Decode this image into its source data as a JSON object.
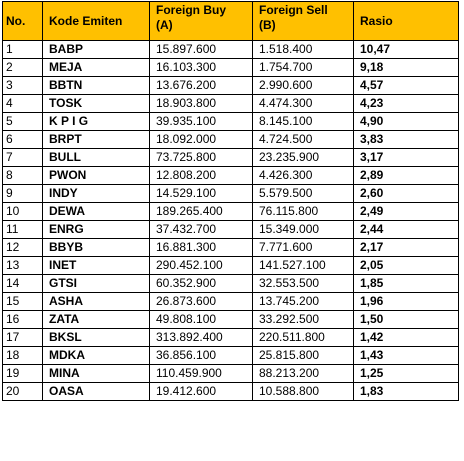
{
  "headers": {
    "no": "No.",
    "kode": "Kode Emiten",
    "buy_line1": "Foreign Buy",
    "buy_line2": "(A)",
    "sell_line1": "Foreign Sell",
    "sell_line2": "(B)",
    "rasio": "Rasio"
  },
  "header_color": "#ffc000",
  "rows": [
    {
      "no": "1",
      "kode": "BABP",
      "buy": "15.897.600",
      "sell": "1.518.400",
      "rasio": "10,47"
    },
    {
      "no": "2",
      "kode": "MEJA",
      "buy": "16.103.300",
      "sell": "1.754.700",
      "rasio": "9,18"
    },
    {
      "no": "3",
      "kode": "BBTN",
      "buy": "13.676.200",
      "sell": "2.990.600",
      "rasio": "4,57"
    },
    {
      "no": "4",
      "kode": "TOSK",
      "buy": "18.903.800",
      "sell": "4.474.300",
      "rasio": "4,23"
    },
    {
      "no": "5",
      "kode": "K P I G",
      "buy": "39.935.100",
      "sell": "8.145.100",
      "rasio": "4,90"
    },
    {
      "no": "6",
      "kode": "BRPT",
      "buy": "18.092.000",
      "sell": "4.724.500",
      "rasio": "3,83"
    },
    {
      "no": "7",
      "kode": "BULL",
      "buy": "73.725.800",
      "sell": "23.235.900",
      "rasio": "3,17"
    },
    {
      "no": "8",
      "kode": "PWON",
      "buy": "12.808.200",
      "sell": "4.426.300",
      "rasio": "2,89"
    },
    {
      "no": "9",
      "kode": "INDY",
      "buy": "14.529.100",
      "sell": "5.579.500",
      "rasio": "2,60"
    },
    {
      "no": "10",
      "kode": "DEWA",
      "buy": "189.265.400",
      "sell": "76.115.800",
      "rasio": "2,49"
    },
    {
      "no": "11",
      "kode": "ENRG",
      "buy": "37.432.700",
      "sell": "15.349.000",
      "rasio": "2,44"
    },
    {
      "no": "12",
      "kode": "BBYB",
      "buy": "16.881.300",
      "sell": "7.771.600",
      "rasio": "2,17"
    },
    {
      "no": "13",
      "kode": "INET",
      "buy": "290.452.100",
      "sell": "141.527.100",
      "rasio": "2,05"
    },
    {
      "no": "14",
      "kode": "GTSI",
      "buy": "60.352.900",
      "sell": "32.553.500",
      "rasio": "1,85"
    },
    {
      "no": "15",
      "kode": "ASHA",
      "buy": "26.873.600",
      "sell": "13.745.200",
      "rasio": "1,96"
    },
    {
      "no": "16",
      "kode": "ZATA",
      "buy": "49.808.100",
      "sell": "33.292.500",
      "rasio": "1,50"
    },
    {
      "no": "17",
      "kode": "BKSL",
      "buy": "313.892.400",
      "sell": "220.511.800",
      "rasio": "1,42"
    },
    {
      "no": "18",
      "kode": "MDKA",
      "buy": "36.856.100",
      "sell": "25.815.800",
      "rasio": "1,43"
    },
    {
      "no": "19",
      "kode": "MINA",
      "buy": "110.459.900",
      "sell": "88.213.200",
      "rasio": "1,25"
    },
    {
      "no": "20",
      "kode": "OASA",
      "buy": "19.412.600",
      "sell": "10.588.800",
      "rasio": "1,83"
    }
  ]
}
